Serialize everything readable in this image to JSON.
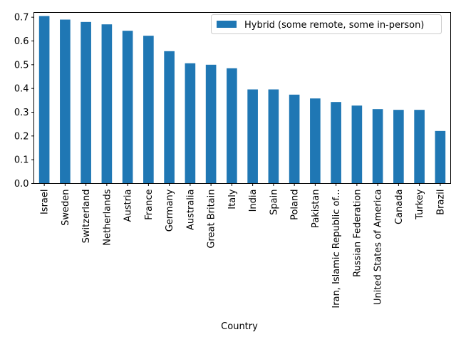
{
  "chart_data": {
    "type": "bar",
    "xlabel": "Country",
    "ylabel": "",
    "ylim": [
      0,
      0.72
    ],
    "yticks": [
      0.0,
      0.1,
      0.2,
      0.3,
      0.4,
      0.5,
      0.6,
      0.7
    ],
    "ytick_labels": [
      "0.0",
      "0.1",
      "0.2",
      "0.3",
      "0.4",
      "0.5",
      "0.6",
      "0.7"
    ],
    "categories": [
      "Israel",
      "Sweden",
      "Switzerland",
      "Netherlands",
      "Austria",
      "France",
      "Germany",
      "Australia",
      "Great Britain",
      "Italy",
      "India",
      "Spain",
      "Poland",
      "Pakistan",
      "Iran, Islamic Republic of...",
      "Russian Federation",
      "United States of America",
      "Canada",
      "Turkey",
      "Brazil"
    ],
    "series": [
      {
        "name": "Hybrid (some remote, some in-person)",
        "color": "#1f77b4",
        "values": [
          0.705,
          0.69,
          0.68,
          0.67,
          0.643,
          0.622,
          0.557,
          0.506,
          0.5,
          0.485,
          0.396,
          0.396,
          0.374,
          0.358,
          0.343,
          0.328,
          0.313,
          0.31,
          0.31,
          0.221
        ]
      }
    ],
    "legend_position": "top-right",
    "grid": false
  }
}
